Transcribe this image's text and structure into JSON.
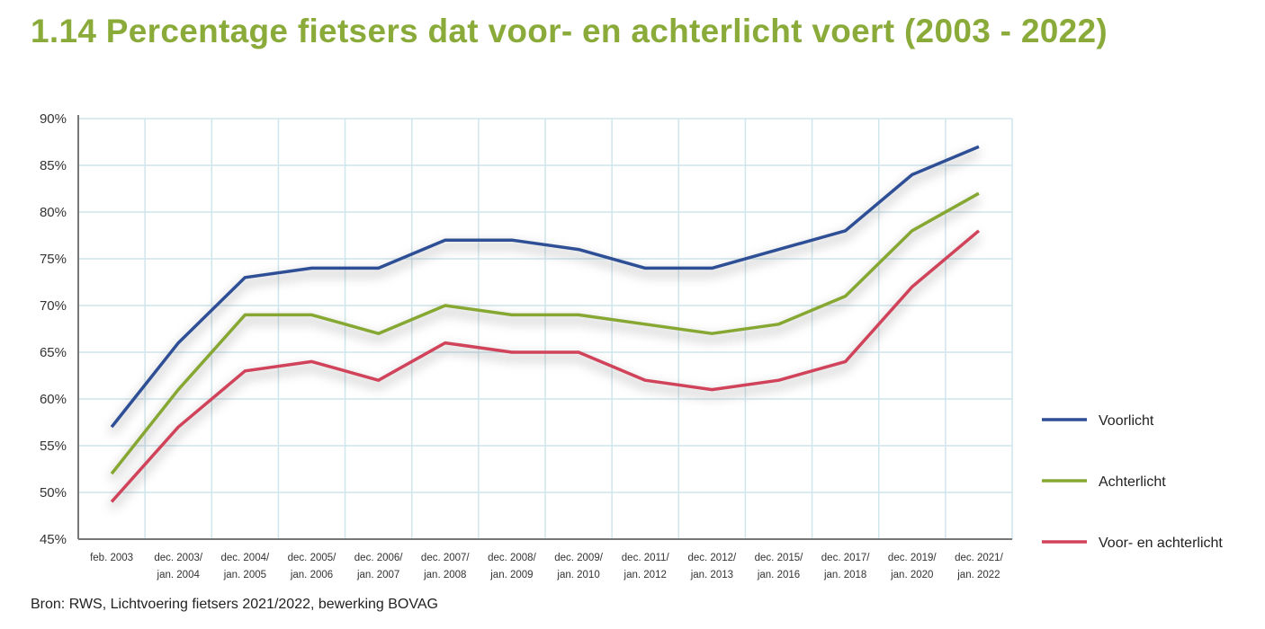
{
  "chart_data": {
    "type": "line",
    "title": "1.14 Percentage fietsers dat voor- en achterlicht voert (2003 - 2022)",
    "source": "Bron: RWS, Lichtvoering fietsers 2021/2022, bewerking BOVAG",
    "categories": [
      [
        "feb. 2003",
        ""
      ],
      [
        "dec. 2003/",
        "jan. 2004"
      ],
      [
        "dec. 2004/",
        "jan. 2005"
      ],
      [
        "dec. 2005/",
        "jan. 2006"
      ],
      [
        "dec. 2006/",
        "jan. 2007"
      ],
      [
        "dec. 2007/",
        "jan. 2008"
      ],
      [
        "dec. 2008/",
        "jan. 2009"
      ],
      [
        "dec. 2009/",
        "jan. 2010"
      ],
      [
        "dec. 2011/",
        "jan. 2012"
      ],
      [
        "dec. 2012/",
        "jan. 2013"
      ],
      [
        "dec. 2015/",
        "jan. 2016"
      ],
      [
        "dec. 2017/",
        "jan. 2018"
      ],
      [
        "dec. 2019/",
        "jan. 2020"
      ],
      [
        "dec. 2021/",
        "jan. 2022"
      ]
    ],
    "yticks": [
      "45%",
      "50%",
      "55%",
      "60%",
      "65%",
      "70%",
      "75%",
      "80%",
      "85%",
      "90%"
    ],
    "ylim": [
      45,
      90
    ],
    "grid": true,
    "legend_position": "right",
    "series": [
      {
        "name": "Voorlicht",
        "color": "#2e4f96",
        "values": [
          57,
          66,
          73,
          74,
          74,
          77,
          77,
          76,
          74,
          74,
          76,
          78,
          84,
          87
        ]
      },
      {
        "name": "Achterlicht",
        "color": "#86a832",
        "values": [
          52,
          61,
          69,
          69,
          67,
          70,
          69,
          69,
          68,
          67,
          68,
          71,
          78,
          82
        ]
      },
      {
        "name": "Voor- en achterlicht",
        "color": "#d0435a",
        "values": [
          49,
          57,
          63,
          64,
          62,
          66,
          65,
          65,
          62,
          61,
          62,
          64,
          72,
          78
        ]
      }
    ]
  }
}
